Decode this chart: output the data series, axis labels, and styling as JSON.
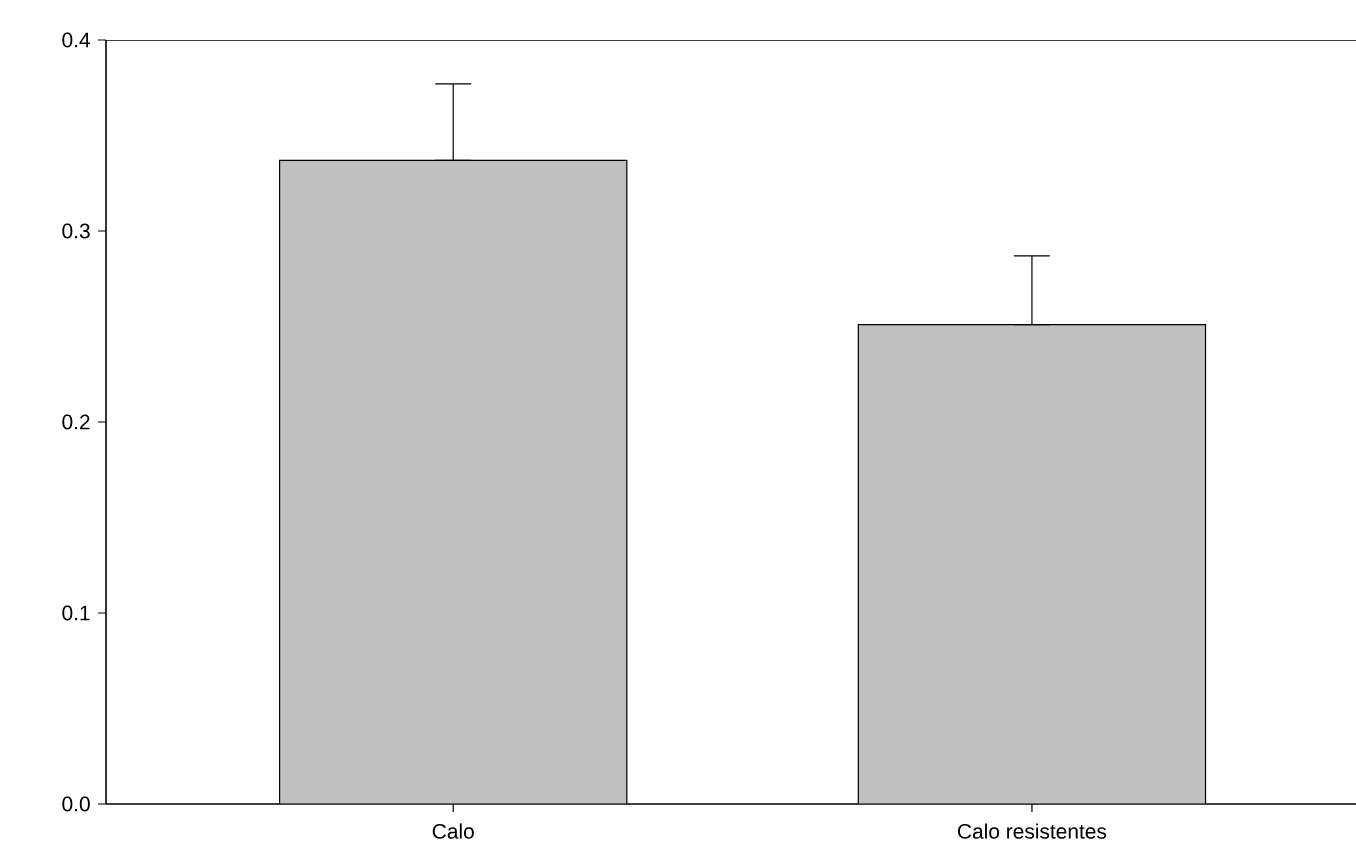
{
  "chart_data": {
    "type": "bar",
    "categories": [
      "Calo",
      "Calo resistentes"
    ],
    "values": [
      0.337,
      0.251
    ],
    "errors": [
      [
        0.337,
        0.377
      ],
      [
        0.251,
        0.287
      ]
    ],
    "color": "#c0c0c0",
    "ylim": [
      0.0,
      0.4
    ],
    "yticks": [
      {
        "value": 0.0,
        "label": "0.0"
      },
      0.1,
      0.2,
      0.3,
      0.4
    ]
  }
}
